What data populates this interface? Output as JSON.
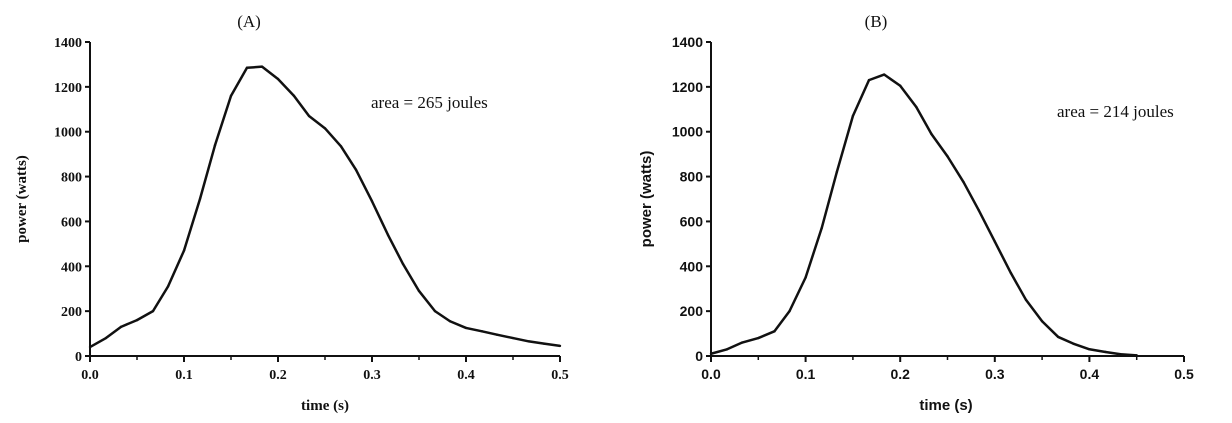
{
  "chart_data": [
    {
      "type": "line",
      "title": "(A)",
      "xlabel": "time (s)",
      "ylabel": "power (watts)",
      "xlim": [
        0.0,
        0.5
      ],
      "ylim": [
        0,
        1400
      ],
      "xticks": [
        "0.0",
        "0.1",
        "0.2",
        "0.3",
        "0.4",
        "0.5"
      ],
      "yticks": [
        "0",
        "200",
        "400",
        "600",
        "800",
        "1000",
        "1200",
        "1400"
      ],
      "grid": false,
      "annotation": "area = 265 joules",
      "series": [
        {
          "x": [
            0.0,
            0.017,
            0.033,
            0.05,
            0.067,
            0.083,
            0.1,
            0.117,
            0.133,
            0.15,
            0.167,
            0.183,
            0.2,
            0.217,
            0.233,
            0.25,
            0.267,
            0.283,
            0.3,
            0.317,
            0.333,
            0.35,
            0.367,
            0.383,
            0.4,
            0.417,
            0.433,
            0.45,
            0.467,
            0.483,
            0.5
          ],
          "y": [
            40,
            80,
            130,
            160,
            200,
            310,
            470,
            700,
            940,
            1160,
            1285,
            1290,
            1235,
            1160,
            1070,
            1015,
            935,
            830,
            690,
            540,
            410,
            290,
            200,
            155,
            125,
            110,
            95,
            80,
            65,
            55,
            45
          ]
        }
      ]
    },
    {
      "type": "line",
      "title": "(B)",
      "xlabel": "time (s)",
      "ylabel": "power (watts)",
      "xlim": [
        0.0,
        0.5
      ],
      "ylim": [
        0,
        1400
      ],
      "xticks": [
        "0.0",
        "0.1",
        "0.2",
        "0.3",
        "0.4",
        "0.5"
      ],
      "yticks": [
        "0",
        "200",
        "400",
        "600",
        "800",
        "1000",
        "1200",
        "1400"
      ],
      "grid": false,
      "annotation": "area = 214 joules",
      "series": [
        {
          "x": [
            0.0,
            0.017,
            0.033,
            0.05,
            0.067,
            0.083,
            0.1,
            0.117,
            0.133,
            0.15,
            0.167,
            0.183,
            0.2,
            0.217,
            0.233,
            0.25,
            0.267,
            0.283,
            0.3,
            0.317,
            0.333,
            0.35,
            0.367,
            0.383,
            0.4,
            0.417,
            0.433,
            0.45
          ],
          "y": [
            10,
            30,
            60,
            80,
            110,
            200,
            350,
            570,
            820,
            1070,
            1230,
            1255,
            1205,
            1110,
            990,
            890,
            775,
            650,
            510,
            370,
            250,
            155,
            85,
            55,
            30,
            18,
            8,
            3
          ]
        }
      ]
    }
  ]
}
